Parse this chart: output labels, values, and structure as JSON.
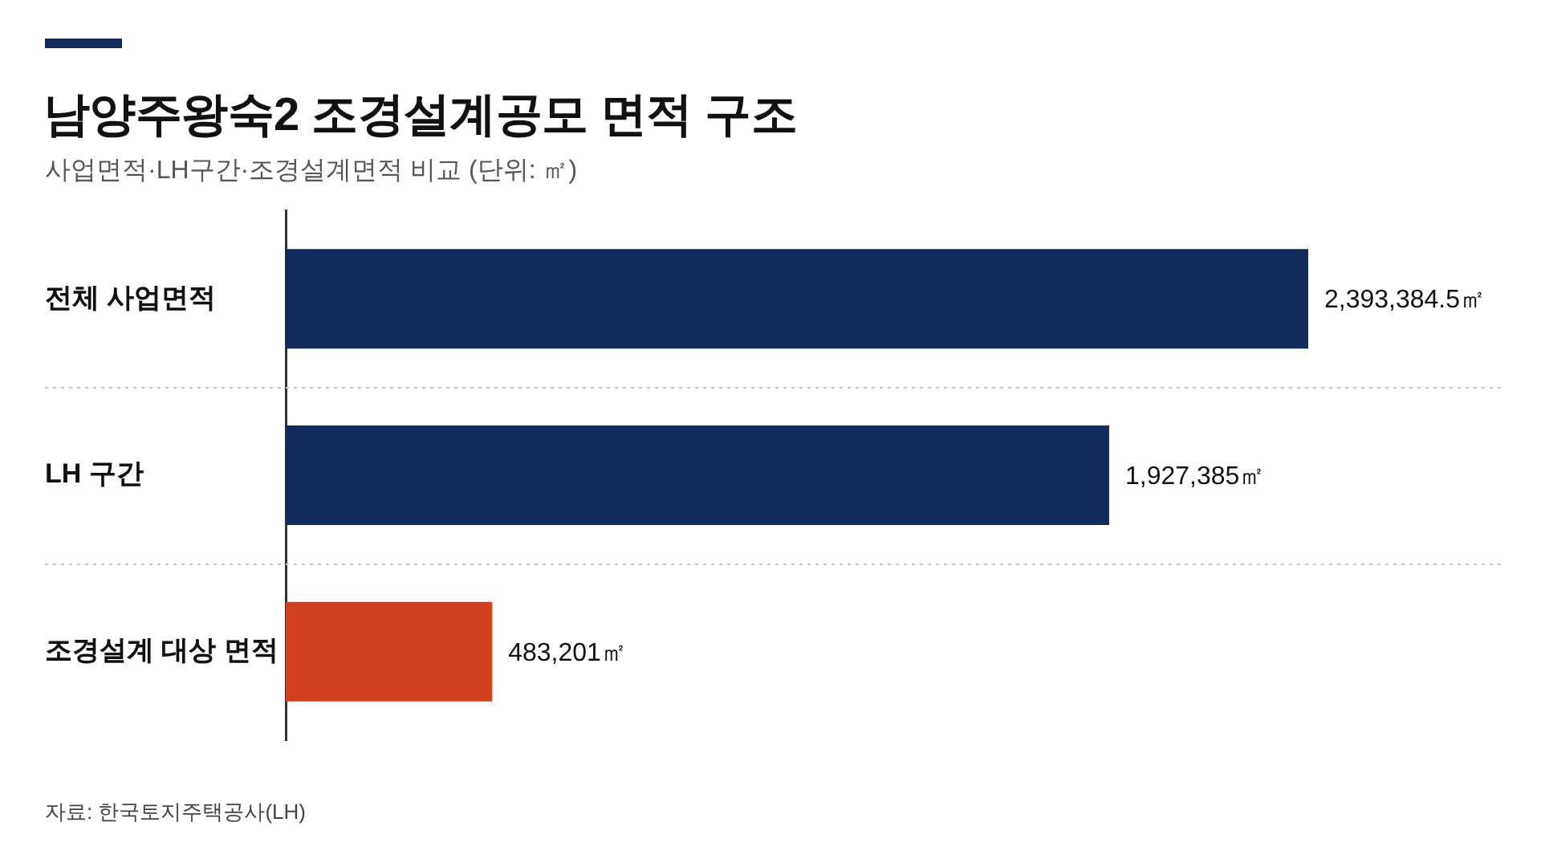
{
  "chart_data": {
    "type": "bar",
    "orientation": "horizontal",
    "title": "남양주왕숙2 조경설계공모 면적 구조",
    "subtitle": "사업면적·LH구간·조경설계면적 비교 (단위: ㎡)",
    "categories": [
      "전체 사업면적",
      "LH 구간",
      "조경설계 대상 면적"
    ],
    "values": [
      2393384.5,
      1927385,
      483201
    ],
    "colors": [
      "#132b5c",
      "#132b5c",
      "#d04020"
    ],
    "value_labels": [
      "2,393,384.5㎡",
      "1,927,385㎡",
      "483,201㎡"
    ],
    "grid": "y",
    "tick_labels": "y",
    "annotations": [
      "자료: 한국토지주택공사(LH)"
    ]
  }
}
